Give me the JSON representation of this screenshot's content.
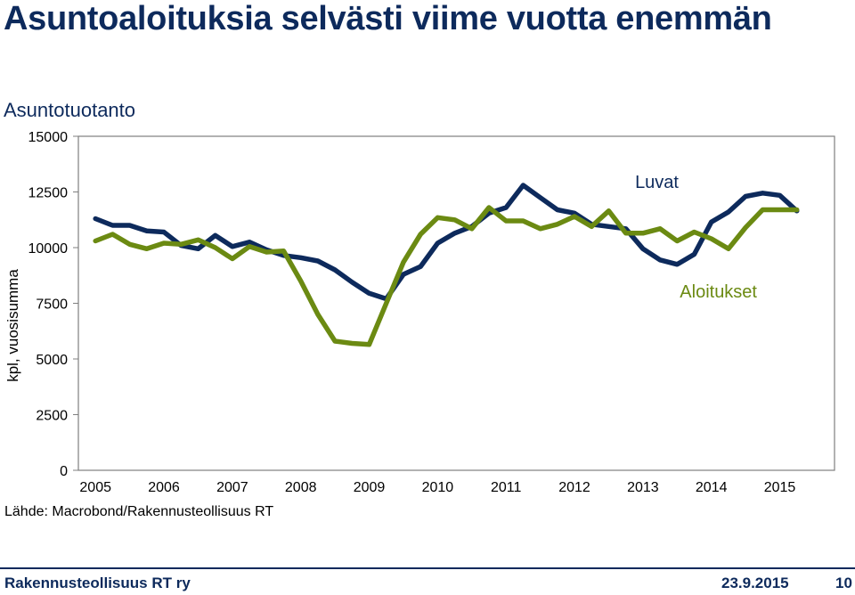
{
  "slide": {
    "title": "Asuntoaloituksia selvästi viime vuotta enemmän"
  },
  "source": "Lähde: Macrobond/Rakennusteollisuus RT",
  "footer": {
    "organization": "Rakennusteollisuus RT ry",
    "date": "23.9.2015",
    "page": "10"
  },
  "colors": {
    "title": "#0d2a5c",
    "luvat": "#0d2a5c",
    "aloitukset": "#6b8a12"
  },
  "chart_data": {
    "type": "line",
    "title": "Asuntotuotanto",
    "ylabel": "kpl, vuosisumma",
    "xlabel": "",
    "ylim": [
      0,
      15000
    ],
    "yticks": [
      0,
      2500,
      5000,
      7500,
      10000,
      12500,
      15000
    ],
    "ytick_labels": [
      "0",
      "2500",
      "5000",
      "7500",
      "10000",
      "12500",
      "15000"
    ],
    "xlim": [
      2004.75,
      2015.8
    ],
    "xticks": [
      2005,
      2006,
      2007,
      2008,
      2009,
      2010,
      2011,
      2012,
      2013,
      2014,
      2015
    ],
    "xtick_labels": [
      "2005",
      "2006",
      "2007",
      "2008",
      "2009",
      "2010",
      "2011",
      "2012",
      "2013",
      "2014",
      "2015"
    ],
    "grid": false,
    "series": [
      {
        "name": "Luvat",
        "color": "#0d2a5c",
        "label_position": "top-right",
        "x": [
          2005.0,
          2005.25,
          2005.5,
          2005.75,
          2006.0,
          2006.25,
          2006.5,
          2006.75,
          2007.0,
          2007.25,
          2007.5,
          2007.75,
          2008.0,
          2008.25,
          2008.5,
          2008.75,
          2009.0,
          2009.25,
          2009.5,
          2009.75,
          2010.0,
          2010.25,
          2010.5,
          2010.75,
          2011.0,
          2011.25,
          2011.5,
          2011.75,
          2012.0,
          2012.25,
          2012.5,
          2012.75,
          2013.0,
          2013.25,
          2013.5,
          2013.75,
          2014.0,
          2014.25,
          2014.5,
          2014.75,
          2015.0,
          2015.25
        ],
        "y": [
          11300,
          11000,
          11000,
          10750,
          10700,
          10100,
          9950,
          10550,
          10050,
          10250,
          9900,
          9650,
          9550,
          9400,
          9000,
          8450,
          7950,
          7700,
          8800,
          9150,
          10200,
          10650,
          10950,
          11550,
          11800,
          12800,
          12250,
          11700,
          11550,
          11050,
          10950,
          10850,
          9950,
          9450,
          9250,
          9700,
          11150,
          11600,
          12300,
          12450,
          12350,
          11650
        ]
      },
      {
        "name": "Aloitukset",
        "color": "#6b8a12",
        "label_position": "right",
        "x": [
          2005.0,
          2005.25,
          2005.5,
          2005.75,
          2006.0,
          2006.25,
          2006.5,
          2006.75,
          2007.0,
          2007.25,
          2007.5,
          2007.75,
          2008.0,
          2008.25,
          2008.5,
          2008.75,
          2009.0,
          2009.25,
          2009.5,
          2009.75,
          2010.0,
          2010.25,
          2010.5,
          2010.75,
          2011.0,
          2011.25,
          2011.5,
          2011.75,
          2012.0,
          2012.25,
          2012.5,
          2012.75,
          2013.0,
          2013.25,
          2013.5,
          2013.75,
          2014.0,
          2014.25,
          2014.5,
          2014.75,
          2015.0,
          2015.25
        ],
        "y": [
          10300,
          10600,
          10150,
          9950,
          10200,
          10150,
          10350,
          10000,
          9500,
          10050,
          9800,
          9850,
          8500,
          7000,
          5800,
          5700,
          5650,
          7500,
          9350,
          10600,
          11350,
          11250,
          10850,
          11800,
          11200,
          11200,
          10850,
          11050,
          11400,
          10950,
          11650,
          10650,
          10650,
          10850,
          10300,
          10700,
          10400,
          9950,
          10900,
          11700,
          11700,
          11700
        ]
      }
    ]
  }
}
